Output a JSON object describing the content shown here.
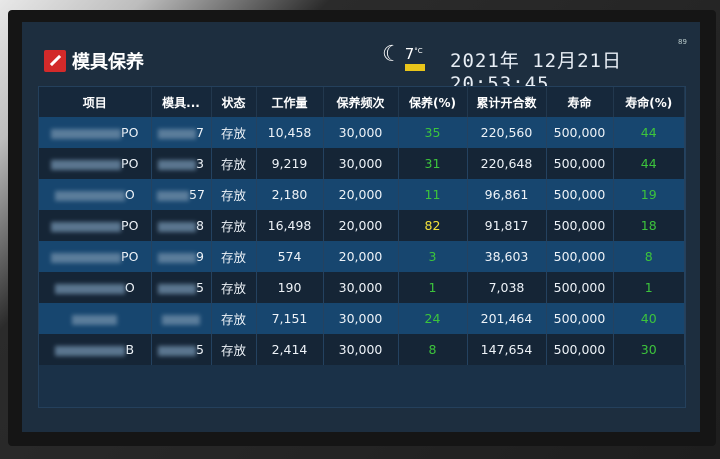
{
  "header": {
    "title": "模具保养",
    "temperature": "7",
    "temp_unit": "°C",
    "datetime": "2021年 12月21日 20:53:45",
    "corner_number": "89",
    "weather_icon": "moon-stars-icon",
    "logo_icon": "logo-icon"
  },
  "table": {
    "columns": [
      "项目",
      "模具...",
      "状态",
      "工作量",
      "保养频次",
      "保养(%)",
      "累计开合数",
      "寿命",
      "寿命(%)"
    ],
    "rows": [
      {
        "item_suffix": "PO",
        "mold_suffix": "7",
        "status": "存放",
        "work": "10,458",
        "freq": "30,000",
        "maint_pct": "35",
        "count": "220,560",
        "life": "500,000",
        "life_pct": "44"
      },
      {
        "item_suffix": "PO",
        "mold_suffix": "3",
        "status": "存放",
        "work": "9,219",
        "freq": "30,000",
        "maint_pct": "31",
        "count": "220,648",
        "life": "500,000",
        "life_pct": "44"
      },
      {
        "item_suffix": "O",
        "mold_suffix": "57",
        "status": "存放",
        "work": "2,180",
        "freq": "20,000",
        "maint_pct": "11",
        "count": "96,861",
        "life": "500,000",
        "life_pct": "19"
      },
      {
        "item_suffix": "PO",
        "mold_suffix": "8",
        "status": "存放",
        "work": "16,498",
        "freq": "20,000",
        "maint_pct": "82",
        "count": "91,817",
        "life": "500,000",
        "life_pct": "18"
      },
      {
        "item_suffix": "PO",
        "mold_suffix": "9",
        "status": "存放",
        "work": "574",
        "freq": "20,000",
        "maint_pct": "3",
        "count": "38,603",
        "life": "500,000",
        "life_pct": "8"
      },
      {
        "item_suffix": "O",
        "mold_suffix": "5",
        "status": "存放",
        "work": "190",
        "freq": "30,000",
        "maint_pct": "1",
        "count": "7,038",
        "life": "500,000",
        "life_pct": "1"
      },
      {
        "item_suffix": "",
        "mold_suffix": "",
        "status": "存放",
        "work": "7,151",
        "freq": "30,000",
        "maint_pct": "24",
        "count": "201,464",
        "life": "500,000",
        "life_pct": "40"
      },
      {
        "item_suffix": "B",
        "mold_suffix": "5",
        "status": "存放",
        "work": "2,414",
        "freq": "30,000",
        "maint_pct": "8",
        "count": "147,654",
        "life": "500,000",
        "life_pct": "30"
      }
    ]
  },
  "colors": {
    "normal_pct": "#3cc43c",
    "warning_pct": "#f2e23a"
  }
}
